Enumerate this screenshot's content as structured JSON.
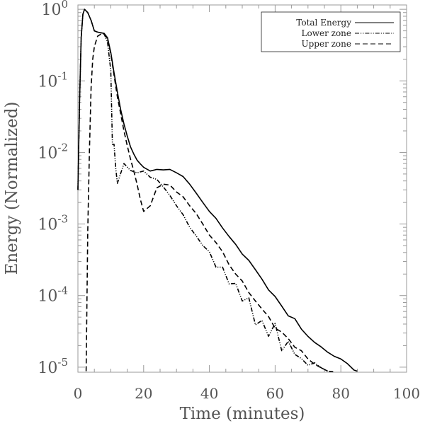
{
  "chart_data": {
    "type": "line",
    "title": "",
    "xlabel": "Time (minutes)",
    "ylabel": "Energy (Normalized)",
    "xlim": [
      0,
      100
    ],
    "ylim": [
      8.5e-06,
      1.15
    ],
    "yscale": "log",
    "grid": false,
    "legend_position": "top-right",
    "x_ticks": [
      0,
      20,
      40,
      60,
      80,
      100
    ],
    "x_tick_labels": [
      "0",
      "20",
      "40",
      "60",
      "80",
      "100"
    ],
    "y_ticks": [
      1,
      0.1,
      0.01,
      0.001,
      0.0001,
      1e-05
    ],
    "y_tick_labels": [
      {
        "base": "10",
        "exp": "0"
      },
      {
        "base": "10",
        "exp": "-1"
      },
      {
        "base": "10",
        "exp": "-2"
      },
      {
        "base": "10",
        "exp": "-3"
      },
      {
        "base": "10",
        "exp": "-4"
      },
      {
        "base": "10",
        "exp": "-5"
      }
    ],
    "series": [
      {
        "name": "Total Energy",
        "style": "solid",
        "color": "#000000",
        "x": [
          0,
          0.5,
          1,
          1.5,
          2,
          3,
          4,
          5,
          6,
          7,
          8,
          9,
          10,
          11,
          12,
          13,
          14,
          15,
          16,
          17,
          18,
          19,
          20,
          22,
          24,
          26,
          28,
          30,
          32,
          34,
          36,
          38,
          40,
          42,
          44,
          46,
          48,
          50,
          52,
          54,
          56,
          58,
          60,
          62,
          64,
          66,
          68,
          70,
          72,
          74,
          76,
          78,
          80,
          82,
          84,
          85
        ],
        "y": [
          0.003,
          0.05,
          0.4,
          0.85,
          1.0,
          0.9,
          0.7,
          0.5,
          0.48,
          0.47,
          0.46,
          0.4,
          0.25,
          0.13,
          0.07,
          0.04,
          0.025,
          0.017,
          0.012,
          0.0095,
          0.0078,
          0.0069,
          0.0062,
          0.0055,
          0.0058,
          0.0057,
          0.0058,
          0.0052,
          0.0046,
          0.0036,
          0.0027,
          0.002,
          0.0015,
          0.0012,
          0.00088,
          0.00067,
          0.00052,
          0.00038,
          0.00031,
          0.00023,
          0.00017,
          0.00012,
          9.71e-05,
          7.15e-05,
          5.2e-05,
          4.76e-05,
          3.4e-05,
          2.69e-05,
          2.22e-05,
          1.92e-05,
          1.62e-05,
          1.42e-05,
          1.3e-05,
          1.12e-05,
          9.1e-06,
          8.8e-06
        ]
      },
      {
        "name": "Lower zone",
        "style": "dash-dot-dot",
        "color": "#000000",
        "x": [
          0,
          0.5,
          1,
          1.5,
          2,
          3,
          4,
          5,
          6,
          7,
          8,
          9,
          10,
          10.5,
          11,
          11.5,
          12,
          14,
          16,
          18,
          20,
          22,
          24,
          26,
          28,
          30,
          32,
          34,
          36,
          38,
          40,
          42,
          44,
          46,
          48,
          50,
          52,
          54,
          56,
          58,
          60,
          62,
          64,
          66,
          68,
          70,
          72,
          74,
          76,
          78
        ],
        "y": [
          0.003,
          0.05,
          0.4,
          0.85,
          1.0,
          0.9,
          0.7,
          0.5,
          0.48,
          0.47,
          0.45,
          0.35,
          0.14,
          0.013,
          0.013,
          0.006,
          0.0037,
          0.007,
          0.0056,
          0.0052,
          0.0055,
          0.0045,
          0.0042,
          0.0033,
          0.0025,
          0.0018,
          0.00135,
          0.0009,
          0.00068,
          0.0005,
          0.00041,
          0.00025,
          0.00025,
          0.000146,
          0.000148,
          8.4e-05,
          9.3e-05,
          3.9e-05,
          4.5e-05,
          2.7e-05,
          4.1e-05,
          1.7e-05,
          2.3e-05,
          1.51e-05,
          1.32e-05,
          1.06e-05,
          1.15e-05,
          9.8e-06,
          8.8e-06,
          8.6e-06
        ]
      },
      {
        "name": "Upper zone",
        "style": "dashed",
        "color": "#000000",
        "x": [
          2.5,
          3,
          3.5,
          4,
          4.5,
          5,
          6,
          7,
          8,
          9,
          10,
          11,
          12,
          13,
          14,
          15,
          16,
          17,
          18,
          19,
          20,
          22,
          24,
          26,
          28,
          30,
          32,
          34,
          36,
          38,
          40,
          42,
          44,
          46,
          48,
          50,
          52,
          54,
          56,
          58,
          60,
          62,
          64,
          66,
          68,
          70,
          72,
          74,
          76
        ],
        "y": [
          8.8e-06,
          0.0008,
          0.01,
          0.08,
          0.2,
          0.3,
          0.42,
          0.45,
          0.45,
          0.38,
          0.24,
          0.12,
          0.06,
          0.035,
          0.02,
          0.0125,
          0.0081,
          0.0055,
          0.0036,
          0.0022,
          0.0015,
          0.0018,
          0.0032,
          0.0036,
          0.0035,
          0.0028,
          0.0024,
          0.0018,
          0.0014,
          0.001,
          0.0007,
          0.00055,
          0.00041,
          0.00027,
          0.0002,
          0.00016,
          0.00011,
          8.4e-05,
          6.5e-05,
          5.1e-05,
          3.5e-05,
          3.1e-05,
          2.5e-05,
          1.9e-05,
          1.7e-05,
          1.3e-05,
          1.1e-05,
          9.8e-06,
          8.8e-06
        ]
      }
    ]
  }
}
